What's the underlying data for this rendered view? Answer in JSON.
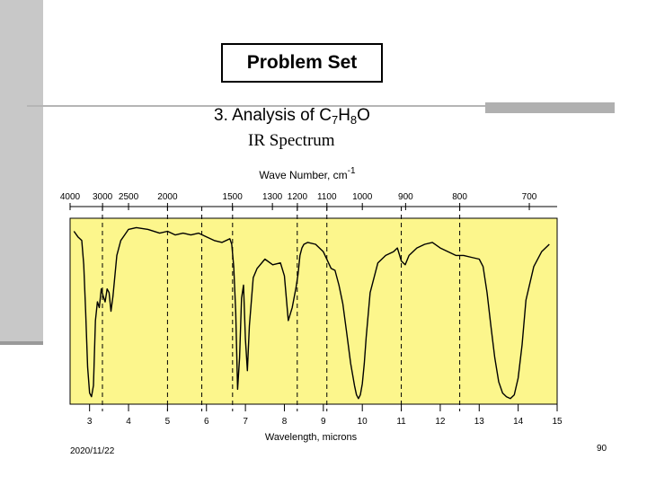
{
  "slide": {
    "title": "Problem Set",
    "subtitle_main": "3. Analysis of C",
    "subtitle_sub1": "7",
    "subtitle_mid": "H",
    "subtitle_sub2": "8",
    "subtitle_end": "O",
    "spectrum_label": "IR Spectrum",
    "date": "2020/11/22",
    "page_number": "90"
  },
  "colors": {
    "plot_bg": "#fcf68c",
    "line": "#000000",
    "sidebar": "#c8c8c8"
  },
  "chart_data": {
    "type": "line",
    "title": "IR Spectrum",
    "top_axis": {
      "label_main": "Wave Number, cm",
      "label_sup": "-1",
      "ticks": [
        4000,
        3000,
        2500,
        2000,
        1500,
        1300,
        1200,
        1100,
        1000,
        900,
        800,
        700
      ],
      "tick_labels": [
        "4000",
        "3000",
        "2500",
        "2000",
        "1500",
        "1300",
        "1200",
        "1100",
        "1000",
        "900",
        "800",
        "700"
      ]
    },
    "xlabel": "Wavelength, microns",
    "xlim": [
      2.5,
      15
    ],
    "x_ticks": [
      3,
      4,
      5,
      6,
      7,
      8,
      9,
      10,
      11,
      12,
      13,
      14,
      15
    ],
    "x_tick_labels": [
      "3",
      "4",
      "5",
      "6",
      "7",
      "8",
      "9",
      "10",
      "11",
      "12",
      "13",
      "14",
      "15"
    ],
    "ylim": [
      0,
      100
    ],
    "y_axis_labeled": false,
    "series": [
      {
        "x": [
          2.6,
          2.7,
          2.8,
          2.85,
          2.9,
          2.95,
          3.0,
          3.05,
          3.1,
          3.15,
          3.2,
          3.25,
          3.3,
          3.35,
          3.4,
          3.45,
          3.5,
          3.55,
          3.6,
          3.7,
          3.8,
          3.9,
          4.0,
          4.2,
          4.5,
          4.8,
          5.0,
          5.2,
          5.4,
          5.6,
          5.8,
          6.0,
          6.2,
          6.4,
          6.6,
          6.65,
          6.7,
          6.75,
          6.8,
          6.85,
          6.9,
          6.95,
          7.0,
          7.05,
          7.1,
          7.2,
          7.3,
          7.5,
          7.7,
          7.9,
          8.0,
          8.1,
          8.2,
          8.3,
          8.35,
          8.4,
          8.45,
          8.5,
          8.6,
          8.8,
          9.0,
          9.2,
          9.3,
          9.4,
          9.5,
          9.6,
          9.7,
          9.8,
          9.85,
          9.9,
          9.95,
          10.0,
          10.05,
          10.1,
          10.2,
          10.4,
          10.6,
          10.8,
          10.9,
          11.0,
          11.1,
          11.2,
          11.4,
          11.6,
          11.8,
          12.0,
          12.2,
          12.4,
          12.6,
          12.8,
          13.0,
          13.1,
          13.2,
          13.3,
          13.4,
          13.5,
          13.6,
          13.7,
          13.8,
          13.9,
          14.0,
          14.1,
          14.2,
          14.4,
          14.6,
          14.8
        ],
        "y": [
          93,
          90,
          88,
          75,
          50,
          20,
          6,
          4,
          10,
          45,
          55,
          52,
          62,
          58,
          55,
          62,
          60,
          50,
          58,
          80,
          88,
          91,
          94,
          95,
          94,
          92,
          93,
          91,
          92,
          91,
          92,
          90,
          88,
          87,
          89,
          86,
          74,
          50,
          8,
          25,
          57,
          64,
          35,
          18,
          42,
          68,
          73,
          78,
          75,
          76,
          69,
          45,
          52,
          63,
          70,
          80,
          84,
          86,
          87,
          86,
          82,
          73,
          72,
          64,
          54,
          38,
          22,
          10,
          5,
          3,
          5,
          11,
          22,
          36,
          60,
          76,
          80,
          82,
          84,
          77,
          75,
          80,
          84,
          86,
          87,
          84,
          82,
          80,
          80,
          79,
          78,
          74,
          60,
          42,
          25,
          12,
          6,
          4,
          3,
          5,
          14,
          32,
          56,
          74,
          82,
          86
        ]
      }
    ],
    "dashed_guides_microns": [
      3.33,
      5.0,
      5.88,
      6.67,
      8.33,
      9.09,
      11.0,
      12.5
    ]
  }
}
